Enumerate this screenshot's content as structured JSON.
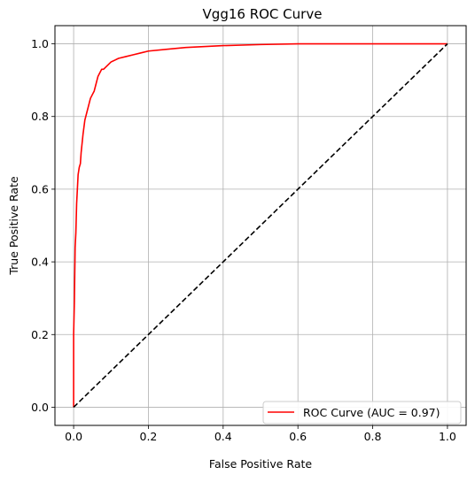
{
  "chart_data": {
    "type": "line",
    "title": "Vgg16 ROC Curve",
    "xlabel": "False Positive Rate",
    "ylabel": "True Positive Rate",
    "xlim": [
      -0.05,
      1.05
    ],
    "ylim": [
      -0.05,
      1.05
    ],
    "xticks": [
      0.0,
      0.2,
      0.4,
      0.6,
      0.8,
      1.0
    ],
    "yticks": [
      0.0,
      0.2,
      0.4,
      0.6,
      0.8,
      1.0
    ],
    "xtick_labels": [
      "0.0",
      "0.2",
      "0.4",
      "0.6",
      "0.8",
      "1.0"
    ],
    "ytick_labels": [
      "0.0",
      "0.2",
      "0.4",
      "0.6",
      "0.8",
      "1.0"
    ],
    "grid": true,
    "legend_position": "bottom-right",
    "series": [
      {
        "name": "ROC Curve (AUC = 0.97)",
        "color": "#ff0000",
        "style": "solid",
        "x": [
          0.0,
          0.0,
          0.002,
          0.004,
          0.006,
          0.008,
          0.01,
          0.012,
          0.015,
          0.018,
          0.02,
          0.025,
          0.03,
          0.035,
          0.04,
          0.045,
          0.05,
          0.055,
          0.06,
          0.065,
          0.07,
          0.075,
          0.08,
          0.09,
          0.1,
          0.11,
          0.12,
          0.14,
          0.16,
          0.18,
          0.2,
          0.25,
          0.3,
          0.4,
          0.5,
          0.6,
          0.8,
          1.0
        ],
        "y": [
          0.0,
          0.2,
          0.29,
          0.44,
          0.48,
          0.56,
          0.6,
          0.64,
          0.66,
          0.67,
          0.7,
          0.75,
          0.79,
          0.81,
          0.83,
          0.85,
          0.86,
          0.87,
          0.89,
          0.91,
          0.92,
          0.93,
          0.93,
          0.94,
          0.95,
          0.955,
          0.96,
          0.965,
          0.97,
          0.975,
          0.98,
          0.985,
          0.99,
          0.995,
          0.998,
          1.0,
          1.0,
          1.0
        ]
      },
      {
        "name": "",
        "color": "#000000",
        "style": "dashed",
        "x": [
          0.0,
          1.0
        ],
        "y": [
          0.0,
          1.0
        ]
      }
    ]
  }
}
